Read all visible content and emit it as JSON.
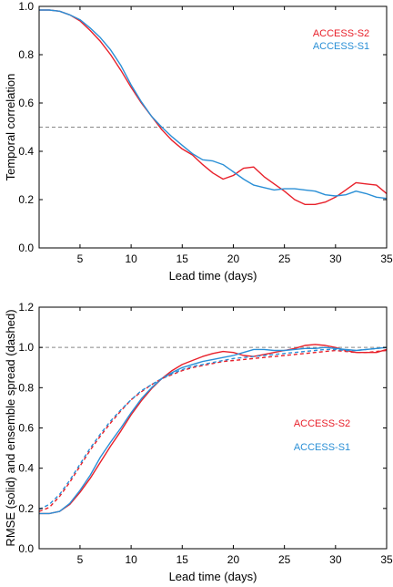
{
  "chart_data": [
    {
      "type": "line",
      "xlabel": "Lead time (days)",
      "ylabel": "Temporal correlation",
      "xlim": [
        1,
        35
      ],
      "ylim": [
        0,
        1.0
      ],
      "xticks": [
        5,
        10,
        15,
        20,
        25,
        30,
        35
      ],
      "yticks": [
        0.0,
        0.2,
        0.4,
        0.6,
        0.8,
        1.0
      ],
      "ytick_labels": [
        "0.0",
        "0.2",
        "0.4",
        "0.6",
        "0.8",
        "1.0"
      ],
      "reference_line": {
        "y": 0.5,
        "style": "dashed",
        "color": "#888888"
      },
      "legend_placement": "top-right",
      "x": [
        1,
        2,
        3,
        4,
        5,
        6,
        7,
        8,
        9,
        10,
        11,
        12,
        13,
        14,
        15,
        16,
        17,
        18,
        19,
        20,
        21,
        22,
        23,
        24,
        25,
        26,
        27,
        28,
        29,
        30,
        31,
        32,
        33,
        34,
        35
      ],
      "series": [
        {
          "name": "ACCESS-S2",
          "color": "#e8202a",
          "style": "solid",
          "values": [
            0.985,
            0.985,
            0.98,
            0.965,
            0.94,
            0.9,
            0.855,
            0.8,
            0.735,
            0.665,
            0.6,
            0.545,
            0.49,
            0.445,
            0.41,
            0.385,
            0.345,
            0.31,
            0.285,
            0.3,
            0.33,
            0.335,
            0.295,
            0.265,
            0.235,
            0.2,
            0.18,
            0.18,
            0.19,
            0.21,
            0.24,
            0.27,
            0.265,
            0.26,
            0.225
          ]
        },
        {
          "name": "ACCESS-S1",
          "color": "#2a8fd6",
          "style": "solid",
          "values": [
            0.985,
            0.985,
            0.98,
            0.965,
            0.945,
            0.91,
            0.87,
            0.82,
            0.755,
            0.675,
            0.605,
            0.545,
            0.5,
            0.46,
            0.425,
            0.39,
            0.365,
            0.36,
            0.345,
            0.315,
            0.285,
            0.26,
            0.25,
            0.24,
            0.245,
            0.245,
            0.24,
            0.235,
            0.22,
            0.215,
            0.22,
            0.235,
            0.225,
            0.21,
            0.205
          ]
        }
      ]
    },
    {
      "type": "line",
      "xlabel": "Lead time (days)",
      "ylabel": "RMSE (solid) and ensemble spread (dashed)",
      "xlim": [
        1,
        35
      ],
      "ylim": [
        0,
        1.2
      ],
      "xticks": [
        5,
        10,
        15,
        20,
        25,
        30,
        35
      ],
      "yticks": [
        0.0,
        0.2,
        0.4,
        0.6,
        0.8,
        1.0,
        1.2
      ],
      "ytick_labels": [
        "0.0",
        "0.2",
        "0.4",
        "0.6",
        "0.8",
        "1.0",
        "1.2"
      ],
      "reference_line": {
        "y": 1.0,
        "style": "dashed",
        "color": "#888888"
      },
      "legend_placement": "center-right",
      "x": [
        1,
        2,
        3,
        4,
        5,
        6,
        7,
        8,
        9,
        10,
        11,
        12,
        13,
        14,
        15,
        16,
        17,
        18,
        19,
        20,
        21,
        22,
        23,
        24,
        25,
        26,
        27,
        28,
        29,
        30,
        31,
        32,
        33,
        34,
        35
      ],
      "series": [
        {
          "name": "ACCESS-S2",
          "color": "#e8202a",
          "style": "solid",
          "values": [
            0.175,
            0.175,
            0.185,
            0.22,
            0.28,
            0.35,
            0.43,
            0.51,
            0.585,
            0.665,
            0.735,
            0.795,
            0.845,
            0.885,
            0.915,
            0.935,
            0.955,
            0.97,
            0.98,
            0.975,
            0.96,
            0.955,
            0.965,
            0.975,
            0.985,
            0.995,
            1.01,
            1.015,
            1.01,
            1.0,
            0.985,
            0.975,
            0.975,
            0.975,
            0.99
          ]
        },
        {
          "name": "ACCESS-S1",
          "color": "#2a8fd6",
          "style": "solid",
          "values": [
            0.175,
            0.175,
            0.185,
            0.225,
            0.29,
            0.365,
            0.455,
            0.53,
            0.6,
            0.675,
            0.745,
            0.8,
            0.845,
            0.875,
            0.9,
            0.915,
            0.93,
            0.94,
            0.95,
            0.96,
            0.975,
            0.99,
            0.99,
            0.985,
            0.985,
            0.99,
            0.995,
            0.995,
            1.0,
            0.995,
            0.99,
            0.985,
            0.99,
            0.995,
            1.0
          ]
        },
        {
          "name": "",
          "color": "#e8202a",
          "style": "dashed",
          "values": [
            0.185,
            0.205,
            0.26,
            0.33,
            0.41,
            0.49,
            0.56,
            0.625,
            0.685,
            0.74,
            0.78,
            0.815,
            0.845,
            0.865,
            0.885,
            0.9,
            0.91,
            0.92,
            0.93,
            0.935,
            0.94,
            0.945,
            0.95,
            0.955,
            0.96,
            0.965,
            0.97,
            0.975,
            0.98,
            0.985,
            0.98,
            0.975,
            0.975,
            0.98,
            0.985
          ]
        },
        {
          "name": "",
          "color": "#2a8fd6",
          "style": "dashed",
          "values": [
            0.195,
            0.22,
            0.27,
            0.34,
            0.42,
            0.5,
            0.57,
            0.635,
            0.69,
            0.74,
            0.785,
            0.815,
            0.845,
            0.87,
            0.89,
            0.905,
            0.915,
            0.925,
            0.935,
            0.945,
            0.95,
            0.955,
            0.96,
            0.965,
            0.97,
            0.975,
            0.98,
            0.985,
            0.99,
            0.99,
            0.985,
            0.985,
            0.99,
            0.995,
            1.0
          ]
        }
      ]
    }
  ]
}
